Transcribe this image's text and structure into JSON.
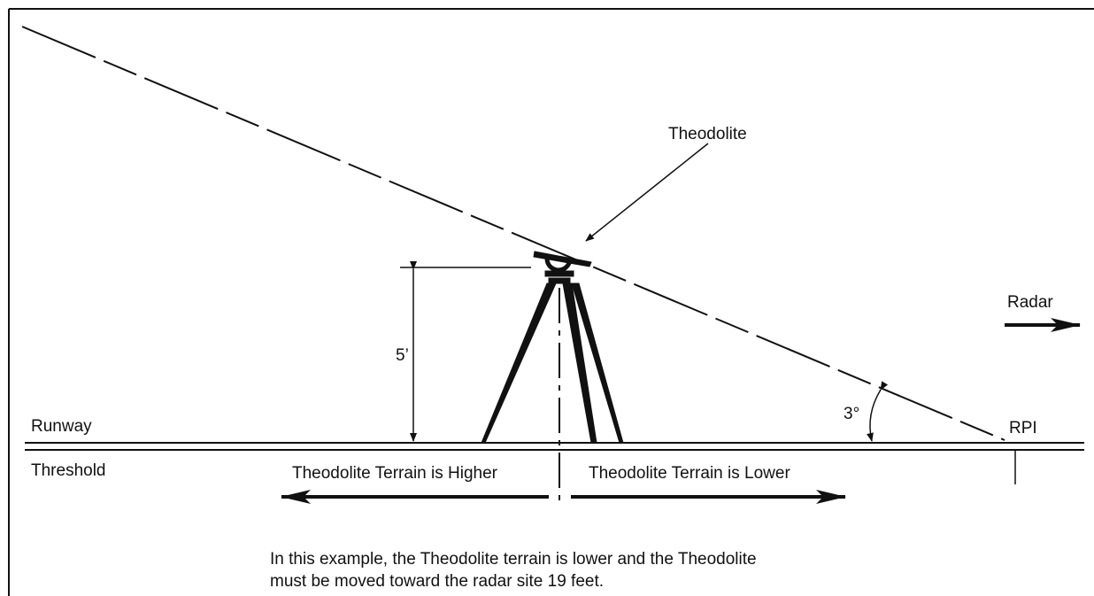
{
  "labels": {
    "theodolite": "Theodolite",
    "radar": "Radar",
    "height": "5’",
    "angle": "3°",
    "runway": "Runway",
    "rpi": "RPI",
    "threshold": "Threshold",
    "higher": "Theodolite Terrain is Higher",
    "lower": "Theodolite Terrain is Lower"
  },
  "caption": [
    "In this example, the Theodolite terrain is lower and the Theodolite",
    "must be moved toward the radar site 19 feet."
  ]
}
